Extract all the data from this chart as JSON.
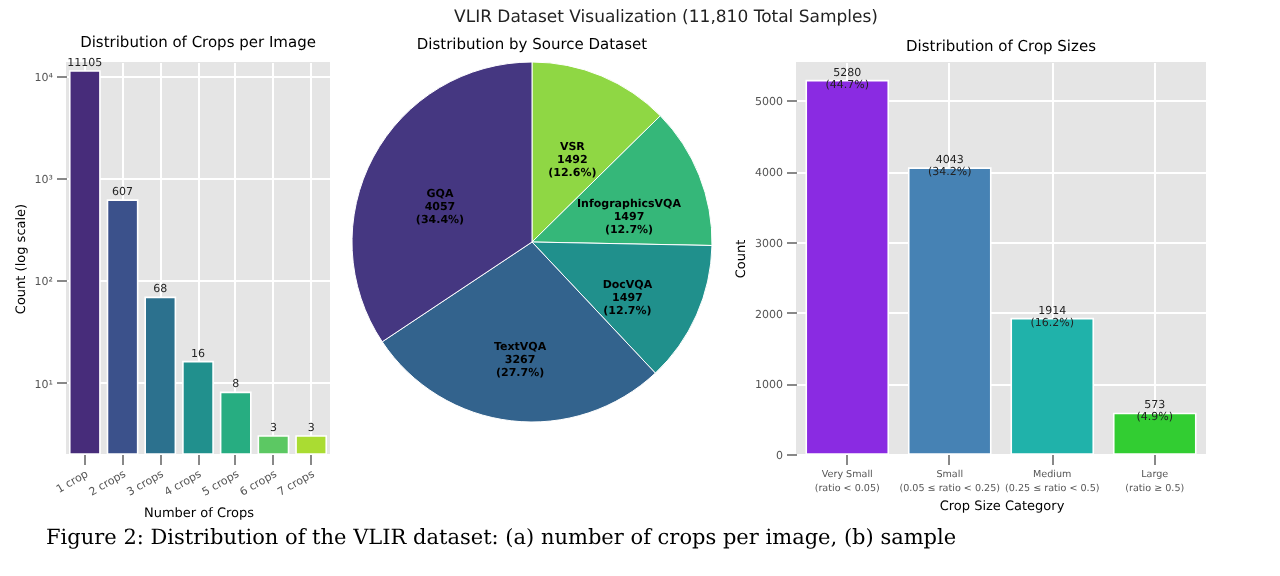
{
  "chart_data": [
    {
      "type": "other",
      "title": "VLIR Dataset Visualization (11,810 Total Samples)",
      "annotations": [
        "Figure 2: Distribution of the VLIR dataset: (a) number of crops per image, (b) sample"
      ]
    },
    {
      "type": "bar",
      "title": "Distribution of Crops per Image",
      "xlabel": "Number of Crops",
      "ylabel": "Count (log scale)",
      "categories": [
        "1 crop",
        "2 crops",
        "3 crops",
        "4 crops",
        "5 crops",
        "6 crops",
        "7 crops"
      ],
      "values": [
        11105,
        607,
        68,
        16,
        8,
        3,
        3
      ],
      "colors": [
        "#472c7a",
        "#3b518b",
        "#2c718e",
        "#21908d",
        "#27ad81",
        "#5cc863",
        "#aadc32"
      ],
      "log": true,
      "ylim": [
        2,
        13600
      ],
      "yticks": [
        {
          "value": 10,
          "label": "10¹"
        },
        {
          "value": 100,
          "label": "10²"
        },
        {
          "value": 1000,
          "label": "10³"
        },
        {
          "value": 10000,
          "label": "10⁴"
        }
      ],
      "grid": true,
      "data_labels": true
    },
    {
      "type": "pie",
      "title": "Distribution by Source Dataset",
      "categories": [
        "VSR",
        "InfographicsVQA",
        "DocVQA",
        "TextVQA",
        "GQA"
      ],
      "values": [
        1492,
        1497,
        1497,
        3267,
        4057
      ],
      "colors": [
        "#8fd744",
        "#35b779",
        "#20908c",
        "#33638d",
        "#453781"
      ],
      "value_labels": [
        "1492\n(12.6%)",
        "1497\n(12.7%)",
        "1497\n(12.7%)",
        "3267\n(27.7%)",
        "4057\n(34.4%)"
      ]
    },
    {
      "type": "bar",
      "title": "Distribution of Crop Sizes",
      "xlabel": "Crop Size Category",
      "ylabel": "Count",
      "categories": [
        "Very Small\n(ratio < 0.05)",
        "Small\n(0.05 ≤ ratio < 0.25)",
        "Medium\n(0.25 ≤ ratio < 0.5)",
        "Large\n(ratio ≥ 0.5)"
      ],
      "values": [
        5280,
        4043,
        1914,
        573
      ],
      "colors": [
        "#8a2be2",
        "#4682b4",
        "#20b2aa",
        "#32cd32"
      ],
      "ylim": [
        0,
        5544
      ],
      "yticks": [
        0,
        1000,
        2000,
        3000,
        4000,
        5000
      ],
      "grid": true,
      "value_labels": [
        "5280\n(44.7%)",
        "4043\n(34.2%)",
        "1914\n(16.2%)",
        "573\n(4.9%)"
      ]
    }
  ]
}
